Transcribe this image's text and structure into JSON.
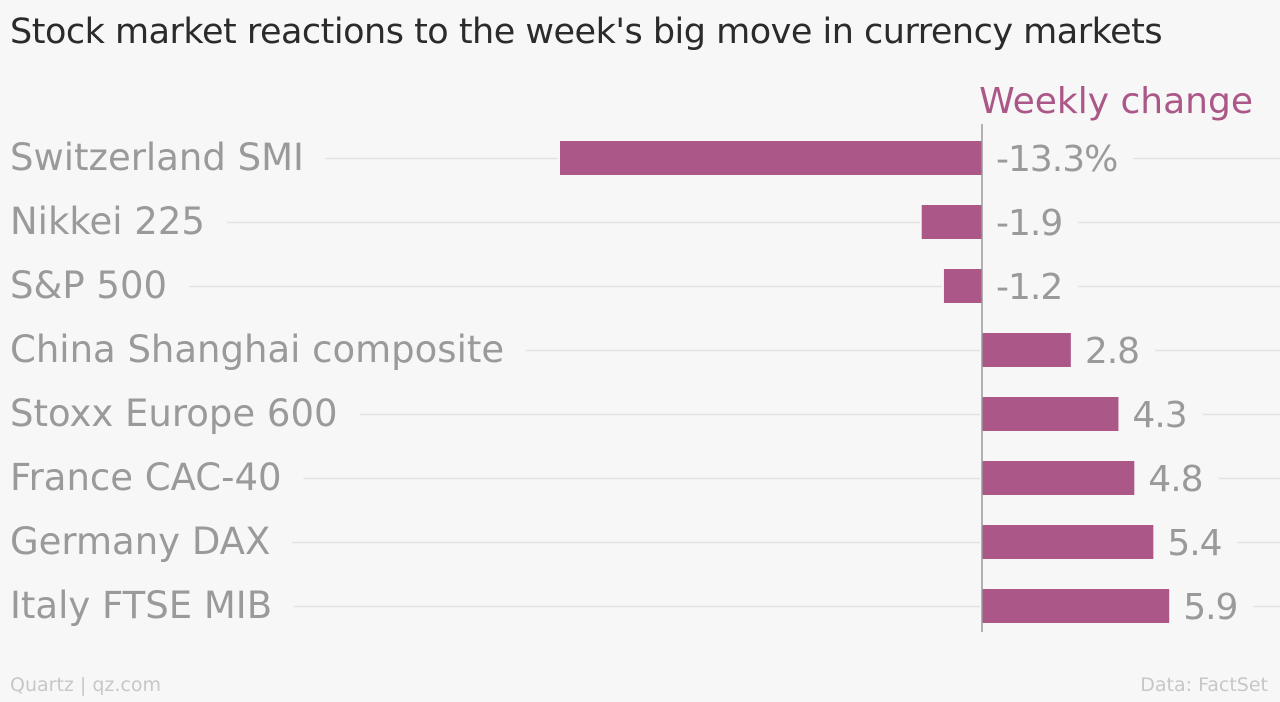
{
  "title": "Stock market reactions to the week's big move in currency markets",
  "footer": {
    "source_left": "Quartz | qz.com",
    "source_right": "Data: FactSet"
  },
  "colors": {
    "bar": "#ab5787",
    "header": "#ab5787",
    "category_text": "#9a9a9a",
    "value_text": "#9a9a9a",
    "gridline": "#e2e2e2",
    "zero_line": "#9a9a9a",
    "background": "#f7f7f7"
  },
  "chart_data": {
    "type": "bar",
    "orientation": "horizontal",
    "column_header": "Weekly change",
    "categories": [
      "Switzerland SMI",
      "Nikkei 225",
      "S&P 500",
      "China Shanghai composite",
      "Stoxx Europe 600",
      "France CAC-40",
      "Germany DAX",
      "Italy FTSE MIB"
    ],
    "values": [
      -13.3,
      -1.9,
      -1.2,
      2.8,
      4.3,
      4.8,
      5.4,
      5.9
    ],
    "value_labels": [
      "-13.3%",
      "-1.9",
      "-1.2",
      "2.8",
      "4.3",
      "4.8",
      "5.4",
      "5.9"
    ],
    "xlim": [
      -13.3,
      5.9
    ],
    "grid": true,
    "zero_line": true
  }
}
